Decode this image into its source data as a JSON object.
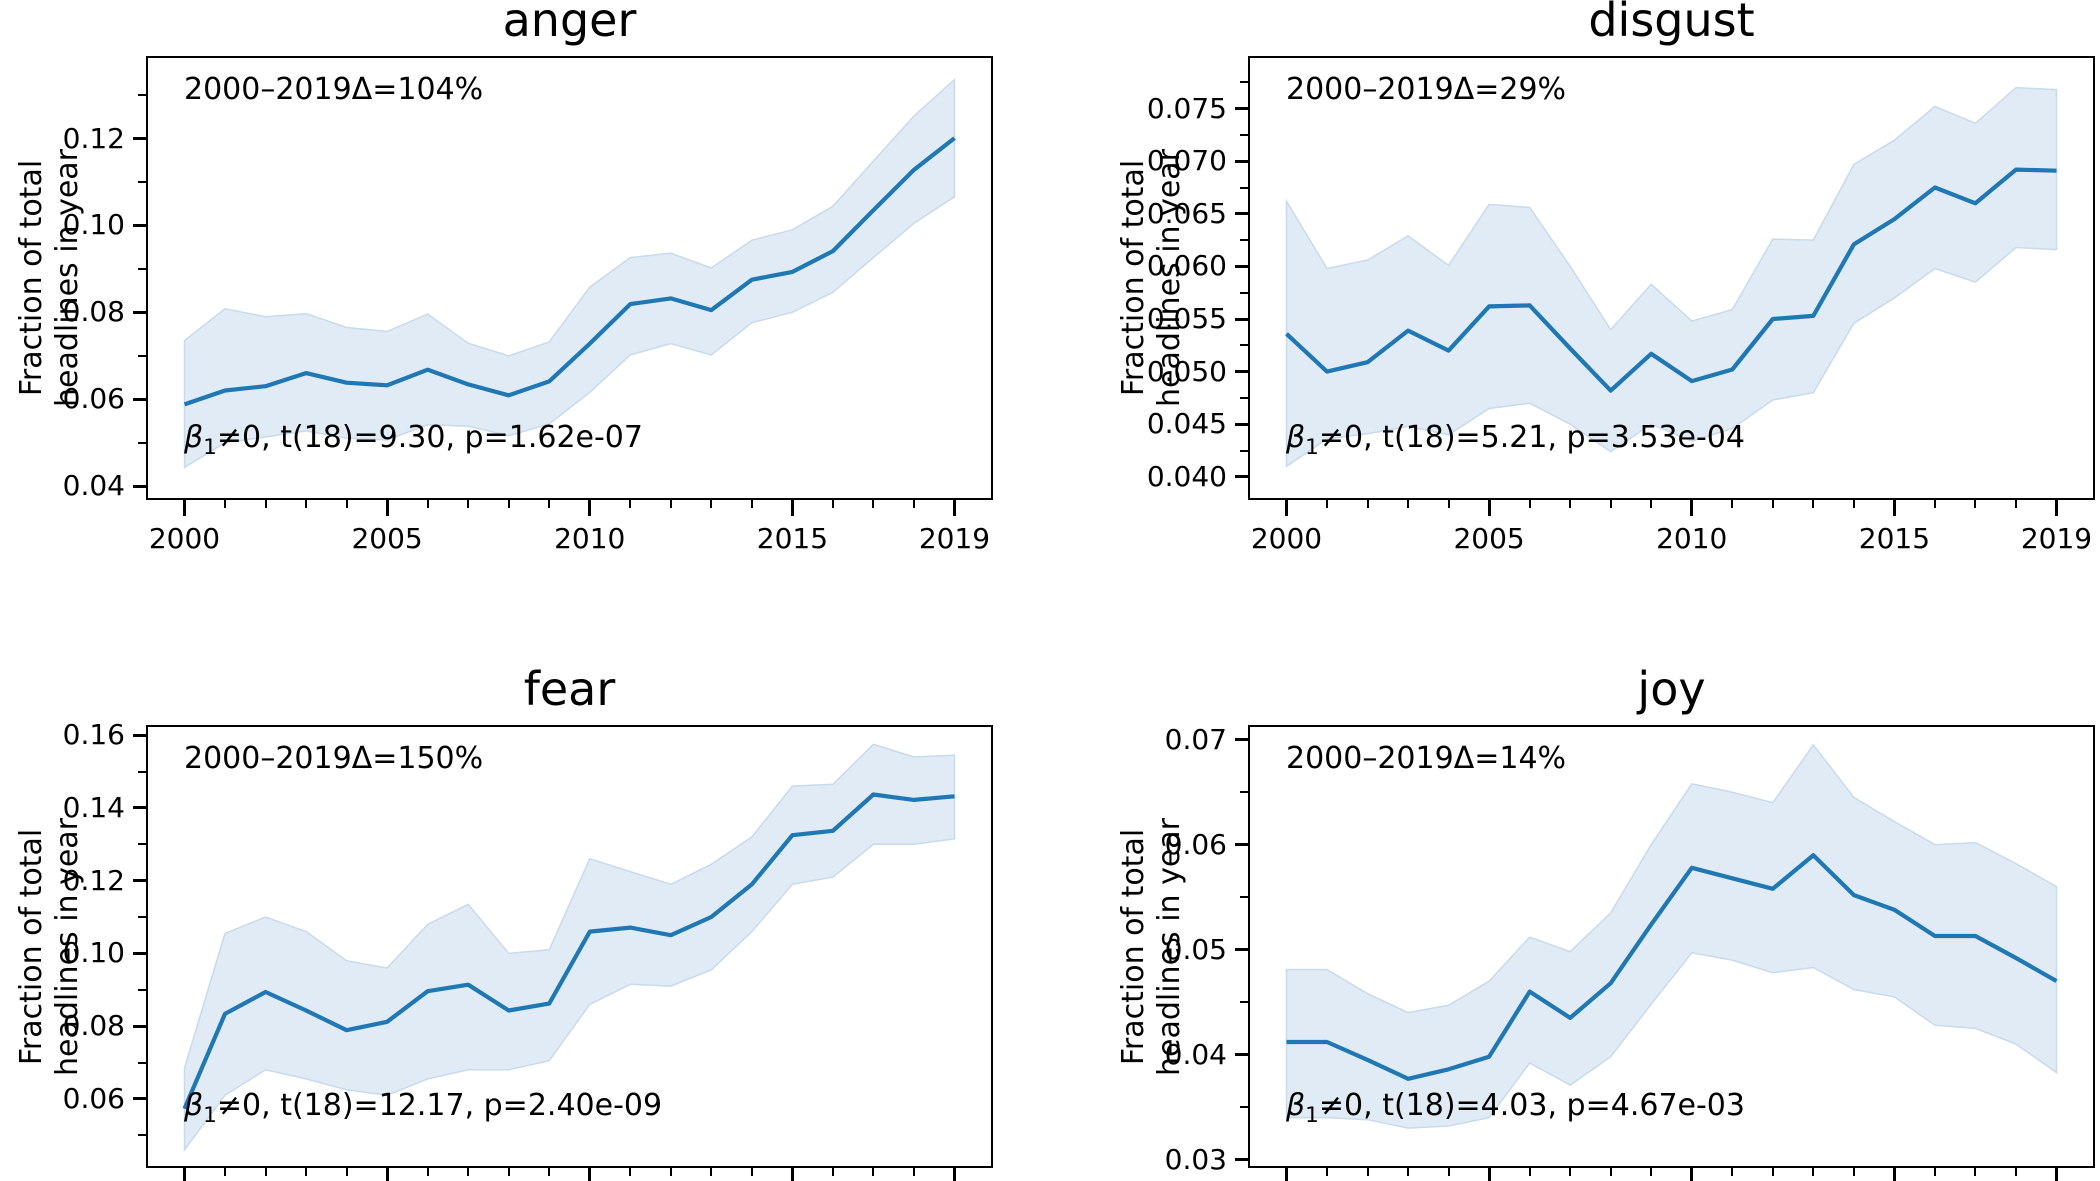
{
  "colors": {
    "line": "#1f77b4",
    "band_fill": "#e0ebf5",
    "band_edge": "#c8daeb",
    "spine": "#000000",
    "text": "#000000",
    "background": "#ffffff"
  },
  "chart_data": [
    {
      "id": "anger",
      "type": "line",
      "title": "anger",
      "delta_label": "2000–2019Δ=104%",
      "stats": {
        "beta": "β",
        "sub": "1",
        "rest": "≠0, t(18)=9.30, p=1.62e-07"
      },
      "ylabel_line1": "Fraction of total",
      "ylabel_line2": "headlines in year",
      "x": [
        2000,
        2001,
        2002,
        2003,
        2004,
        2005,
        2006,
        2007,
        2008,
        2009,
        2010,
        2011,
        2012,
        2013,
        2014,
        2015,
        2016,
        2017,
        2018,
        2019
      ],
      "y": [
        0.0588,
        0.062,
        0.063,
        0.066,
        0.0638,
        0.0632,
        0.0668,
        0.0634,
        0.0609,
        0.0641,
        0.0728,
        0.0819,
        0.0832,
        0.0805,
        0.0875,
        0.0893,
        0.0941,
        0.1035,
        0.1128,
        0.1201
      ],
      "band_lower": [
        0.0443,
        0.05,
        0.0513,
        0.0527,
        0.051,
        0.0506,
        0.0541,
        0.0538,
        0.0516,
        0.0543,
        0.0616,
        0.0702,
        0.0728,
        0.0702,
        0.0776,
        0.08,
        0.0846,
        0.0926,
        0.1005,
        0.1066
      ],
      "band_upper": [
        0.0735,
        0.0808,
        0.079,
        0.0797,
        0.0765,
        0.0756,
        0.0796,
        0.0729,
        0.07,
        0.0732,
        0.0858,
        0.0926,
        0.0936,
        0.0902,
        0.0966,
        0.099,
        0.1044,
        0.1148,
        0.1252,
        0.1336
      ],
      "xlim": [
        1999.05,
        2019.95
      ],
      "ylim": [
        0.0368,
        0.139
      ],
      "ytick_values": [
        0.04,
        0.06,
        0.08,
        0.1,
        0.12
      ],
      "ytick_labels": [
        "0.04",
        "0.06",
        "0.08",
        "0.10",
        "0.12"
      ],
      "xtick_major": [
        2000,
        2005,
        2010,
        2015,
        2019
      ],
      "xtick_labels": [
        "2000",
        "2005",
        "2010",
        "2015",
        "2019"
      ],
      "show_xlabels": true,
      "grid": false,
      "legend": null
    },
    {
      "id": "disgust",
      "type": "line",
      "title": "disgust",
      "delta_label": "2000–2019Δ=29%",
      "stats": {
        "beta": "β",
        "sub": "1",
        "rest": "≠0, t(18)=5.21, p=3.53e-04"
      },
      "ylabel_line1": "Fraction of total",
      "ylabel_line2": "headlines in year",
      "x": [
        2000,
        2001,
        2002,
        2003,
        2004,
        2005,
        2006,
        2007,
        2008,
        2009,
        2010,
        2011,
        2012,
        2013,
        2014,
        2015,
        2016,
        2017,
        2018,
        2019
      ],
      "y": [
        0.0536,
        0.05,
        0.0509,
        0.0539,
        0.052,
        0.0562,
        0.0563,
        0.0522,
        0.0482,
        0.0517,
        0.0491,
        0.0502,
        0.055,
        0.0553,
        0.0621,
        0.0645,
        0.0675,
        0.066,
        0.0692,
        0.0691
      ],
      "band_lower": [
        0.041,
        0.0436,
        0.0441,
        0.0448,
        0.044,
        0.0465,
        0.047,
        0.045,
        0.0424,
        0.045,
        0.0434,
        0.0446,
        0.0473,
        0.048,
        0.0546,
        0.057,
        0.0598,
        0.0585,
        0.0618,
        0.0616
      ],
      "band_upper": [
        0.0662,
        0.0598,
        0.0606,
        0.0629,
        0.0601,
        0.0659,
        0.0656,
        0.06,
        0.054,
        0.0583,
        0.0548,
        0.0559,
        0.0626,
        0.0625,
        0.0697,
        0.072,
        0.0752,
        0.0736,
        0.077,
        0.0768
      ],
      "xlim": [
        1999.05,
        2019.95
      ],
      "ylim": [
        0.0378,
        0.08
      ],
      "ytick_values": [
        0.04,
        0.045,
        0.05,
        0.055,
        0.06,
        0.065,
        0.07,
        0.075
      ],
      "ytick_labels": [
        "0.040",
        "0.045",
        "0.050",
        "0.055",
        "0.060",
        "0.065",
        "0.070",
        "0.075"
      ],
      "xtick_major": [
        2000,
        2005,
        2010,
        2015,
        2019
      ],
      "xtick_labels": [
        "2000",
        "2005",
        "2010",
        "2015",
        "2019"
      ],
      "show_xlabels": true,
      "grid": false,
      "legend": null
    },
    {
      "id": "fear",
      "type": "line",
      "title": "fear",
      "delta_label": "2000–2019Δ=150%",
      "stats": {
        "beta": "β",
        "sub": "1",
        "rest": "≠0, t(18)=12.17, p=2.40e-09"
      },
      "ylabel_line1": "Fraction of total",
      "ylabel_line2": "headlines in year",
      "x": [
        2000,
        2001,
        2002,
        2003,
        2004,
        2005,
        2006,
        2007,
        2008,
        2009,
        2010,
        2011,
        2012,
        2013,
        2014,
        2015,
        2016,
        2017,
        2018,
        2019
      ],
      "y": [
        0.0573,
        0.0834,
        0.0894,
        0.0843,
        0.0789,
        0.0812,
        0.0896,
        0.0914,
        0.0843,
        0.0862,
        0.106,
        0.1071,
        0.105,
        0.11,
        0.119,
        0.1325,
        0.1337,
        0.1437,
        0.1422,
        0.1432
      ],
      "band_lower": [
        0.046,
        0.061,
        0.068,
        0.0655,
        0.0625,
        0.061,
        0.0655,
        0.068,
        0.068,
        0.0705,
        0.086,
        0.0915,
        0.091,
        0.0955,
        0.106,
        0.119,
        0.121,
        0.13,
        0.13,
        0.1315
      ],
      "band_upper": [
        0.0685,
        0.1055,
        0.11,
        0.106,
        0.098,
        0.096,
        0.108,
        0.1135,
        0.1,
        0.101,
        0.126,
        0.1225,
        0.119,
        0.1245,
        0.132,
        0.146,
        0.1465,
        0.1575,
        0.154,
        0.1545
      ],
      "xlim": [
        1999.05,
        2019.95
      ],
      "ylim": [
        0.041,
        0.1628
      ],
      "ytick_values": [
        0.06,
        0.08,
        0.1,
        0.12,
        0.14,
        0.16
      ],
      "ytick_labels": [
        "0.06",
        "0.08",
        "0.10",
        "0.12",
        "0.14",
        "0.16"
      ],
      "xtick_major": [
        2000,
        2005,
        2010,
        2015,
        2019
      ],
      "xtick_labels": [],
      "show_xlabels": false,
      "grid": false,
      "legend": null
    },
    {
      "id": "joy",
      "type": "line",
      "title": "joy",
      "delta_label": "2000–2019Δ=14%",
      "stats": {
        "beta": "β",
        "sub": "1",
        "rest": "≠0, t(18)=4.03, p=4.67e-03"
      },
      "ylabel_line1": "Fraction of total",
      "ylabel_line2": "headlines in year",
      "x": [
        2000,
        2001,
        2002,
        2003,
        2004,
        2005,
        2006,
        2007,
        2008,
        2009,
        2010,
        2011,
        2012,
        2013,
        2014,
        2015,
        2016,
        2017,
        2018,
        2019
      ],
      "y": [
        0.0412,
        0.0412,
        0.0395,
        0.0377,
        0.0386,
        0.0398,
        0.046,
        0.0435,
        0.0468,
        0.0524,
        0.0578,
        0.0568,
        0.0558,
        0.059,
        0.0552,
        0.0538,
        0.0513,
        0.0513,
        0.0492,
        0.047
      ],
      "band_lower": [
        0.034,
        0.034,
        0.0338,
        0.033,
        0.0332,
        0.034,
        0.0392,
        0.0371,
        0.0398,
        0.0448,
        0.0497,
        0.049,
        0.0478,
        0.0483,
        0.0462,
        0.0455,
        0.0428,
        0.0425,
        0.041,
        0.0383
      ],
      "band_upper": [
        0.0481,
        0.0481,
        0.0458,
        0.044,
        0.0447,
        0.047,
        0.0512,
        0.0498,
        0.0535,
        0.06,
        0.0658,
        0.065,
        0.064,
        0.0695,
        0.0645,
        0.0622,
        0.06,
        0.0602,
        0.0582,
        0.056
      ],
      "xlim": [
        1999.05,
        2019.95
      ],
      "ylim": [
        0.0292,
        0.0714
      ],
      "ytick_values": [
        0.03,
        0.04,
        0.05,
        0.06,
        0.07
      ],
      "ytick_labels": [
        "0.03",
        "0.04",
        "0.05",
        "0.06",
        "0.07"
      ],
      "xtick_major": [
        2000,
        2005,
        2010,
        2015,
        2019
      ],
      "xtick_labels": [],
      "show_xlabels": false,
      "grid": false,
      "legend": null
    }
  ]
}
